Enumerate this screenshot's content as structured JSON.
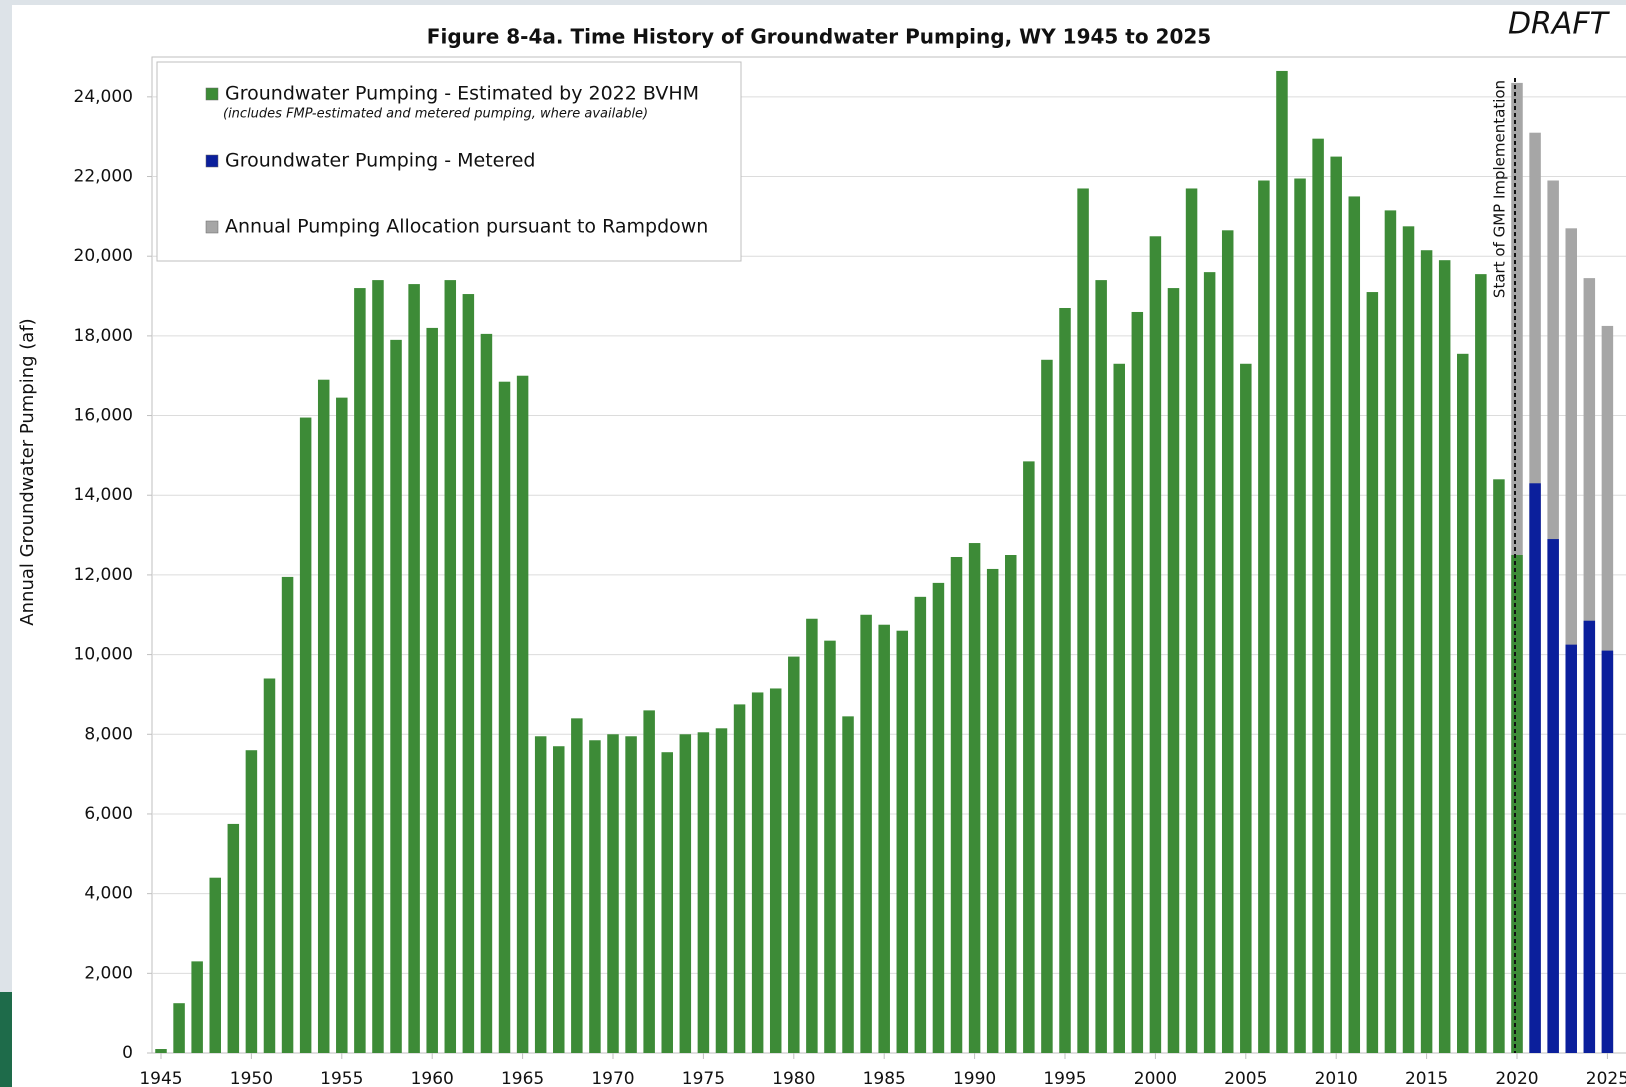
{
  "chart_data": {
    "type": "bar",
    "title": "Figure 8-4a. Time History of Groundwater Pumping, WY 1945 to 2025",
    "watermark": "DRAFT",
    "y_label": "Annual Groundwater Pumping (af)",
    "legend_note": "(includes FMP-estimated and metered pumping, where available)",
    "annotation": {
      "text": "Start of GMP Implementation",
      "x": 2020
    },
    "x": [
      1945,
      1946,
      1947,
      1948,
      1949,
      1950,
      1951,
      1952,
      1953,
      1954,
      1955,
      1956,
      1957,
      1958,
      1959,
      1960,
      1961,
      1962,
      1963,
      1964,
      1965,
      1966,
      1967,
      1968,
      1969,
      1970,
      1971,
      1972,
      1973,
      1974,
      1975,
      1976,
      1977,
      1978,
      1979,
      1980,
      1981,
      1982,
      1983,
      1984,
      1985,
      1986,
      1987,
      1988,
      1989,
      1990,
      1991,
      1992,
      1993,
      1994,
      1995,
      1996,
      1997,
      1998,
      1999,
      2000,
      2001,
      2002,
      2003,
      2004,
      2005,
      2006,
      2007,
      2008,
      2009,
      2010,
      2011,
      2012,
      2013,
      2014,
      2015,
      2016,
      2017,
      2018,
      2019,
      2020,
      2021,
      2022,
      2023,
      2024,
      2025
    ],
    "series": [
      {
        "name": "Annual Pumping Allocation pursuant to Rampdown",
        "color": "#a6a6a6",
        "values": [
          null,
          null,
          null,
          null,
          null,
          null,
          null,
          null,
          null,
          null,
          null,
          null,
          null,
          null,
          null,
          null,
          null,
          null,
          null,
          null,
          null,
          null,
          null,
          null,
          null,
          null,
          null,
          null,
          null,
          null,
          null,
          null,
          null,
          null,
          null,
          null,
          null,
          null,
          null,
          null,
          null,
          null,
          null,
          null,
          null,
          null,
          null,
          null,
          null,
          null,
          null,
          null,
          null,
          null,
          null,
          null,
          null,
          null,
          null,
          null,
          null,
          null,
          null,
          null,
          null,
          null,
          null,
          null,
          null,
          null,
          null,
          null,
          null,
          null,
          null,
          24350,
          23100,
          21900,
          20700,
          19450,
          18250
        ]
      },
      {
        "name": "Groundwater Pumping - Estimated by 2022 BVHM",
        "color": "#3d8b37",
        "values": [
          100,
          1250,
          2300,
          4400,
          5750,
          7600,
          9400,
          11950,
          15950,
          16900,
          16450,
          19200,
          19400,
          17900,
          19300,
          18200,
          19400,
          19050,
          18050,
          16850,
          17000,
          7950,
          7700,
          8400,
          7850,
          8000,
          7950,
          8600,
          7550,
          8000,
          8050,
          8150,
          8750,
          9050,
          9150,
          9950,
          10900,
          10350,
          8450,
          11000,
          10750,
          10600,
          11450,
          11800,
          12450,
          12800,
          12150,
          12500,
          14850,
          17400,
          18700,
          21700,
          19400,
          17300,
          18600,
          20500,
          19200,
          21700,
          19600,
          20650,
          17300,
          21900,
          24650,
          21950,
          22950,
          22500,
          21500,
          19100,
          21150,
          20750,
          20150,
          19900,
          17550,
          19550,
          14400,
          12500,
          null,
          null,
          null,
          null,
          null
        ]
      },
      {
        "name": "Groundwater Pumping - Metered",
        "color": "#0b1f9c",
        "values": [
          null,
          null,
          null,
          null,
          null,
          null,
          null,
          null,
          null,
          null,
          null,
          null,
          null,
          null,
          null,
          null,
          null,
          null,
          null,
          null,
          null,
          null,
          null,
          null,
          null,
          null,
          null,
          null,
          null,
          null,
          null,
          null,
          null,
          null,
          null,
          null,
          null,
          null,
          null,
          null,
          null,
          null,
          null,
          null,
          null,
          null,
          null,
          null,
          null,
          null,
          null,
          null,
          null,
          null,
          null,
          null,
          null,
          null,
          null,
          null,
          null,
          null,
          null,
          null,
          null,
          null,
          null,
          null,
          null,
          null,
          null,
          null,
          null,
          null,
          null,
          null,
          14300,
          12900,
          10250,
          10850,
          10100
        ]
      }
    ],
    "legend_order": [
      1,
      2,
      0
    ],
    "ylim": [
      0,
      25000
    ],
    "yticks": [
      0,
      {
        "value": 2000,
        "label": "2,000"
      },
      {
        "value": 4000,
        "label": "4,000"
      },
      {
        "value": 6000,
        "label": "6,000"
      },
      {
        "value": 8000,
        "label": "8,000"
      },
      {
        "value": 10000,
        "label": "10,000"
      },
      {
        "value": 12000,
        "label": "12,000"
      },
      {
        "value": 14000,
        "label": "14,000"
      },
      {
        "value": 16000,
        "label": "16,000"
      },
      {
        "value": 18000,
        "label": "18,000"
      },
      {
        "value": 20000,
        "label": "20,000"
      },
      {
        "value": 22000,
        "label": "22,000"
      },
      {
        "value": 24000,
        "label": "24,000"
      }
    ],
    "xticks": [
      1945,
      1950,
      1955,
      1960,
      1965,
      1970,
      1975,
      1980,
      1985,
      1990,
      1995,
      2000,
      2005,
      2010,
      2015,
      2020,
      2025
    ],
    "grid": true
  }
}
